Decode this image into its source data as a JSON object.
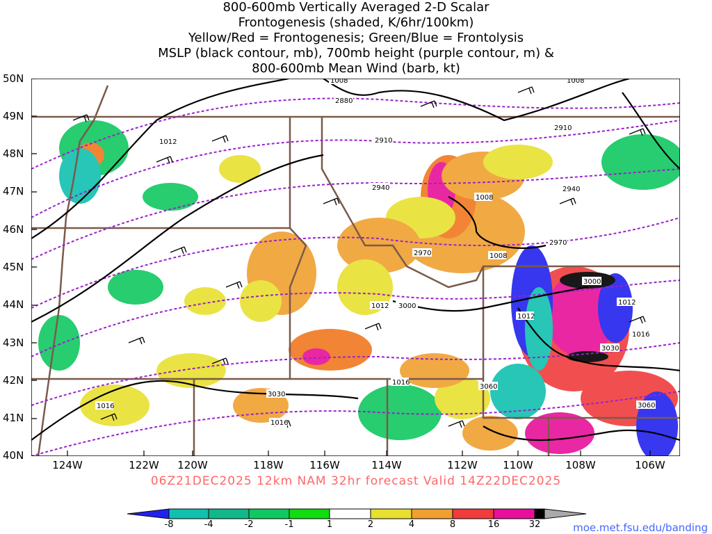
{
  "title_lines": [
    "800-600mb Vertically Averaged 2-D Scalar",
    "Frontogenesis (shaded, K/6hr/100km)",
    "Yellow/Red = Frontogenesis;  Green/Blue = Frontolysis",
    "MSLP (black contour, mb), 700mb height (purple contour, m) &",
    "800-600mb Mean Wind (barb, kt)"
  ],
  "latitude_labels": [
    "50N",
    "49N",
    "48N",
    "47N",
    "46N",
    "45N",
    "44N",
    "43N",
    "42N",
    "41N",
    "40N"
  ],
  "longitude_labels": [
    "124W",
    "122W",
    "120W",
    "118W",
    "116W",
    "114W",
    "112W",
    "110W",
    "108W",
    "106W"
  ],
  "contour_labels": {
    "mslp": [
      "1008",
      "1012",
      "1008",
      "1008",
      "1012",
      "1008",
      "1012",
      "1012",
      "1016",
      "1016",
      "1016",
      "1016"
    ],
    "height_700mb": [
      "2880",
      "2910",
      "2910",
      "2940",
      "2940",
      "2970",
      "2970",
      "3000",
      "3000",
      "3030",
      "3030",
      "3060",
      "3060"
    ]
  },
  "valid_text": "06Z21DEC2025 12km NAM 32hr forecast Valid 14Z22DEC2025",
  "colorbar": {
    "labels": [
      "-8",
      "-4",
      "-2",
      "-1",
      "1",
      "2",
      "4",
      "8",
      "16",
      "32"
    ],
    "colors": [
      "#2222ee",
      "#10c0b0",
      "#12b88a",
      "#10c860",
      "#10dd10",
      "#ffffff",
      "#e8e030",
      "#f0a030",
      "#f07820",
      "#f03c3c",
      "#e8109a",
      "#000000",
      "#aaaaaa"
    ]
  },
  "credit": "moe.met.fsu.edu/banding",
  "colors": {
    "mslp": "#000000",
    "height": "#9922cc",
    "border": "#7a5a4a",
    "frame": "#000000"
  }
}
